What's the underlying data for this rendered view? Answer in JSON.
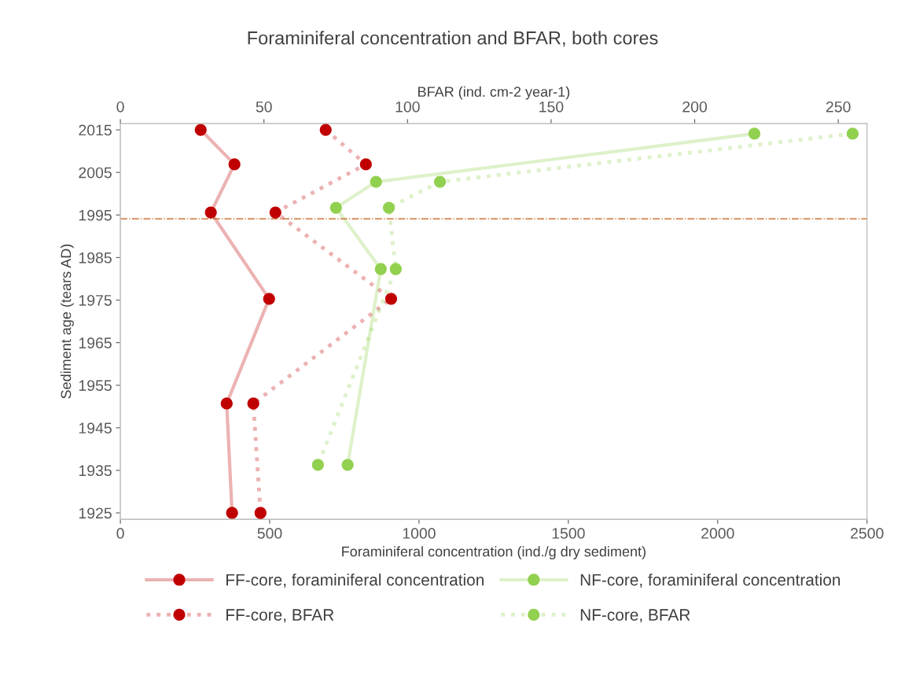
{
  "chart_data": {
    "type": "line",
    "title": "Foraminiferal concentration and BFAR, both cores",
    "xlabel": "Foraminiferal concentration (ind./g dry sediment)",
    "x2label": "BFAR (ind. cm-2 year-1)",
    "ylabel": "Sediment age (tears AD)",
    "xlim": [
      0,
      2500
    ],
    "xticks": [
      0,
      500,
      1000,
      1500,
      2000,
      2500
    ],
    "x2lim": [
      0,
      260
    ],
    "x2ticks": [
      0,
      50,
      100,
      150,
      200,
      250
    ],
    "ylim": [
      1923.5,
      2016.5
    ],
    "yticks": [
      1925,
      1935,
      1945,
      1955,
      1965,
      1975,
      1985,
      1995,
      2005,
      2015
    ],
    "marker": "circle",
    "legend": "bottom",
    "grid": false,
    "series": [
      {
        "name": "FF-core, foraminiferal concentration",
        "color": "#c00000",
        "line_style": "solid",
        "x": [
          269,
          382,
          303,
          498,
          356,
          374
        ],
        "values": [
          2015,
          2006.9,
          1995.6,
          1975.3,
          1950.7,
          1925
        ]
      },
      {
        "name": "FF-core, BFAR",
        "color": "#c00000",
        "line_style": "dotted",
        "axis": "x2",
        "x": [
          71.5,
          85.5,
          54,
          94.3,
          46.3,
          48.8
        ],
        "values": [
          2015,
          2006.9,
          1995.6,
          1975.3,
          1950.7,
          1925
        ]
      },
      {
        "name": "NF-core, foraminiferal concentration",
        "color": "#92d050",
        "line_style": "solid",
        "x": [
          2123,
          856,
          722,
          872,
          761
        ],
        "values": [
          2014.1,
          2002.8,
          1996.7,
          1982.3,
          1936.3
        ]
      },
      {
        "name": "NF-core, BFAR",
        "color": "#92d050",
        "line_style": "dotted",
        "axis": "x2",
        "x": [
          255,
          111.3,
          93.5,
          95.9,
          68.8
        ],
        "values": [
          2014.1,
          2002.8,
          1996.7,
          1982.3,
          1936.3
        ]
      }
    ],
    "ref_lines": [
      {
        "axis": "y",
        "value": 1994.1,
        "color": "#c55a11",
        "line_style": "dashdot"
      }
    ]
  }
}
